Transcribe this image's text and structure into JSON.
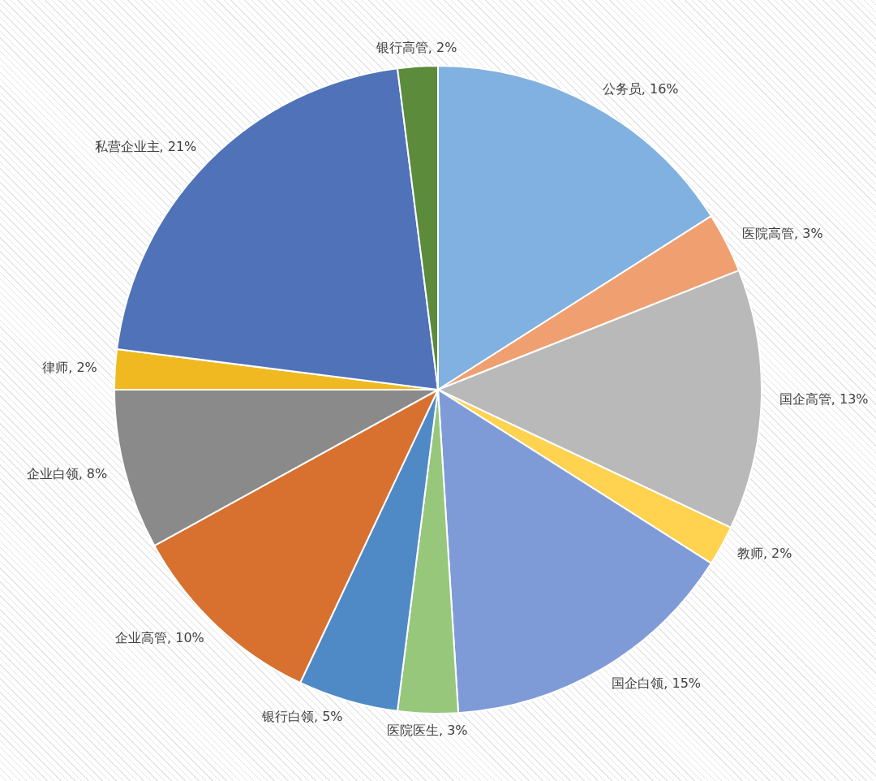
{
  "chart_data": {
    "type": "pie",
    "categories": [
      "公务员",
      "医院高管",
      "国企高管",
      "教师",
      "国企白领",
      "医院医生",
      "银行白领",
      "企业高管",
      "企业白领",
      "律师",
      "私营企业主",
      "银行高管"
    ],
    "values": [
      16,
      3,
      13,
      2,
      15,
      3,
      5,
      10,
      8,
      2,
      21,
      2
    ],
    "value_labels": [
      "16%",
      "3%",
      "13%",
      "2%",
      "15%",
      "3%",
      "5%",
      "10%",
      "8%",
      "2%",
      "21%",
      "2%"
    ],
    "colors": [
      "#80b1e0",
      "#f0a070",
      "#b9b9b9",
      "#ffd24f",
      "#7f9bd7",
      "#97c77b",
      "#4f8ac7",
      "#d8712f",
      "#8a8a8a",
      "#f1b921",
      "#4f72b9",
      "#5b8b3b"
    ],
    "legend": false
  }
}
